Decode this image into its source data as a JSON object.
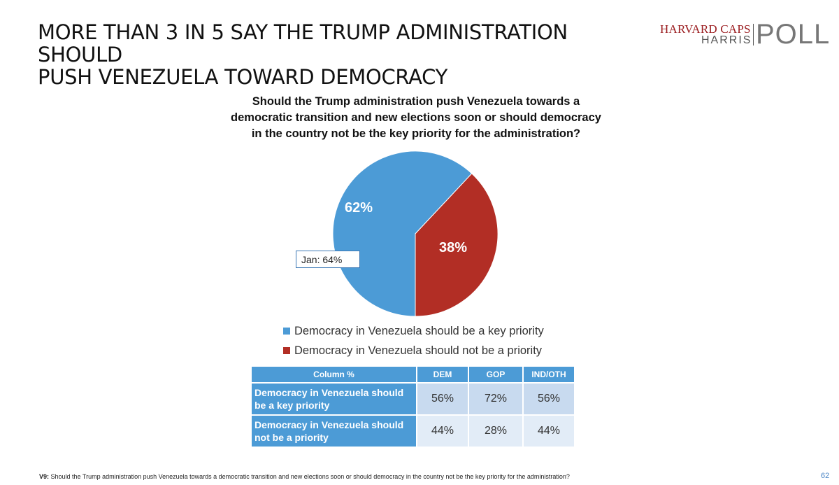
{
  "headline": {
    "line1": "MORE THAN 3 IN 5 SAY THE TRUMP ADMINISTRATION SHOULD",
    "line2": "PUSH VENEZUELA TOWARD DEMOCRACY"
  },
  "logo": {
    "harvard_caps": "HARVARD CAPS",
    "harris": "HARRIS",
    "poll": "POLL"
  },
  "chart_data": {
    "type": "pie",
    "title": [
      "Should the Trump administration push Venezuela towards a",
      "democratic transition and new elections soon or should democracy",
      "in the country not be the key priority for the administration?"
    ],
    "slices": [
      {
        "name": "Democracy in Venezuela should be a key priority",
        "value": 62,
        "label": "62%",
        "color": "#4c9bd6"
      },
      {
        "name": "Democracy in Venezuela should not be a priority",
        "value": 38,
        "label": "38%",
        "color": "#b22e25"
      }
    ],
    "annotation": "Jan: 64%",
    "legend_placement": "bottom"
  },
  "table": {
    "header": [
      "Column %",
      "DEM",
      "GOP",
      "IND/OTH"
    ],
    "rows": [
      {
        "label": "Democracy in Venezuela should be a key priority",
        "values": [
          "56%",
          "72%",
          "56%"
        ]
      },
      {
        "label": "Democracy in Venezuela should not be a priority",
        "values": [
          "44%",
          "28%",
          "44%"
        ]
      }
    ]
  },
  "footnote": {
    "code": "V9:",
    "text": "Should the Trump administration push Venezuela towards a democratic transition and new elections soon or should democracy in the country not be the key priority for the administration?"
  },
  "page_number": "62"
}
